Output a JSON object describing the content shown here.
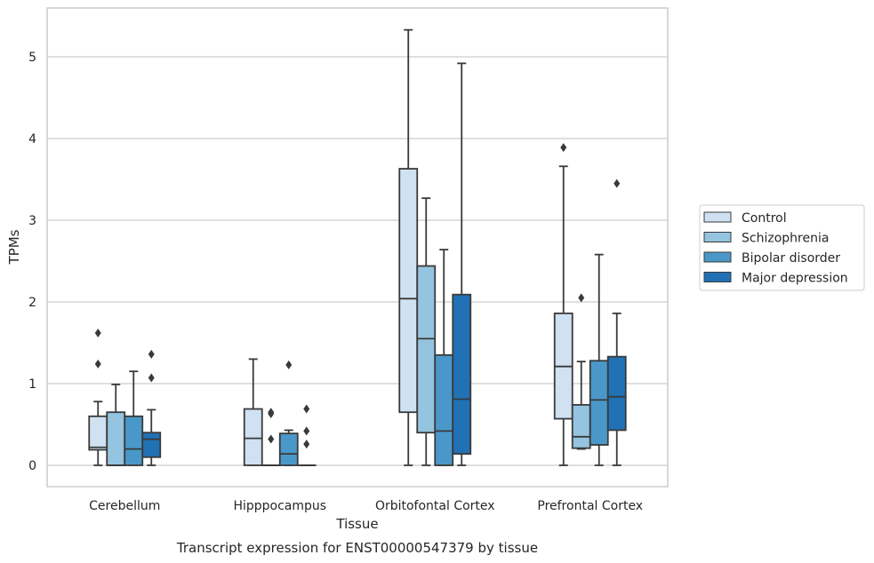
{
  "chart_data": {
    "type": "boxplot",
    "title": "",
    "caption": "Transcript expression for ENST00000547379 by tissue",
    "xlabel": "Tissue",
    "ylabel": "TPMs",
    "ylim": [
      -0.25,
      5.6
    ],
    "yticks": [
      0,
      1,
      2,
      3,
      4,
      5
    ],
    "grid": "horizontal",
    "legend_position": "right",
    "categories": [
      "Cerebellum",
      "Hipppocampus",
      "Orbitofontal Cortex",
      "Prefrontal Cortex"
    ],
    "series": [
      {
        "name": "Control",
        "color": "#d0e1f2",
        "boxes": [
          {
            "whislo": 0,
            "q1": 0.19,
            "med": 0.22,
            "q3": 0.6,
            "whishi": 0.78,
            "fliers": [
              1.24,
              1.62
            ]
          },
          {
            "whislo": 0,
            "q1": 0,
            "med": 0.33,
            "q3": 0.69,
            "whishi": 1.3,
            "fliers": []
          },
          {
            "whislo": 0,
            "q1": 0.65,
            "med": 2.04,
            "q3": 3.63,
            "whishi": 5.33,
            "fliers": []
          },
          {
            "whislo": 0,
            "q1": 0.57,
            "med": 1.21,
            "q3": 1.86,
            "whishi": 3.66,
            "fliers": [
              3.89
            ]
          }
        ]
      },
      {
        "name": "Schizophrenia",
        "color": "#94c4df",
        "boxes": [
          {
            "whislo": 0,
            "q1": 0,
            "med": 0,
            "q3": 0.65,
            "whishi": 0.99,
            "fliers": []
          },
          {
            "whislo": 0,
            "q1": 0,
            "med": 0,
            "q3": 0,
            "whishi": 0,
            "fliers": [
              0.32,
              0.63,
              0.65
            ]
          },
          {
            "whislo": 0,
            "q1": 0.4,
            "med": 1.55,
            "q3": 2.44,
            "whishi": 3.27,
            "fliers": []
          },
          {
            "whislo": 0.2,
            "q1": 0.21,
            "med": 0.35,
            "q3": 0.74,
            "whishi": 1.27,
            "fliers": [
              2.05
            ]
          }
        ]
      },
      {
        "name": "Bipolar disorder",
        "color": "#4a98c9",
        "boxes": [
          {
            "whislo": 0,
            "q1": 0,
            "med": 0.2,
            "q3": 0.6,
            "whishi": 1.15,
            "fliers": []
          },
          {
            "whislo": 0,
            "q1": 0,
            "med": 0.14,
            "q3": 0.39,
            "whishi": 0.43,
            "fliers": [
              1.23
            ]
          },
          {
            "whislo": 0,
            "q1": 0,
            "med": 0.42,
            "q3": 1.35,
            "whishi": 2.64,
            "fliers": []
          },
          {
            "whislo": 0,
            "q1": 0.25,
            "med": 0.8,
            "q3": 1.28,
            "whishi": 2.58,
            "fliers": []
          }
        ]
      },
      {
        "name": "Major depression",
        "color": "#2171b5",
        "boxes": [
          {
            "whislo": 0,
            "q1": 0.1,
            "med": 0.32,
            "q3": 0.4,
            "whishi": 0.68,
            "fliers": [
              1.07,
              1.36
            ]
          },
          {
            "whislo": 0,
            "q1": 0,
            "med": 0,
            "q3": 0,
            "whishi": 0,
            "fliers": [
              0.26,
              0.42,
              0.69
            ]
          },
          {
            "whislo": 0,
            "q1": 0.14,
            "med": 0.81,
            "q3": 2.09,
            "whishi": 4.92,
            "fliers": []
          },
          {
            "whislo": 0,
            "q1": 0.43,
            "med": 0.84,
            "q3": 1.33,
            "whishi": 1.86,
            "fliers": [
              3.45
            ]
          }
        ]
      }
    ]
  }
}
